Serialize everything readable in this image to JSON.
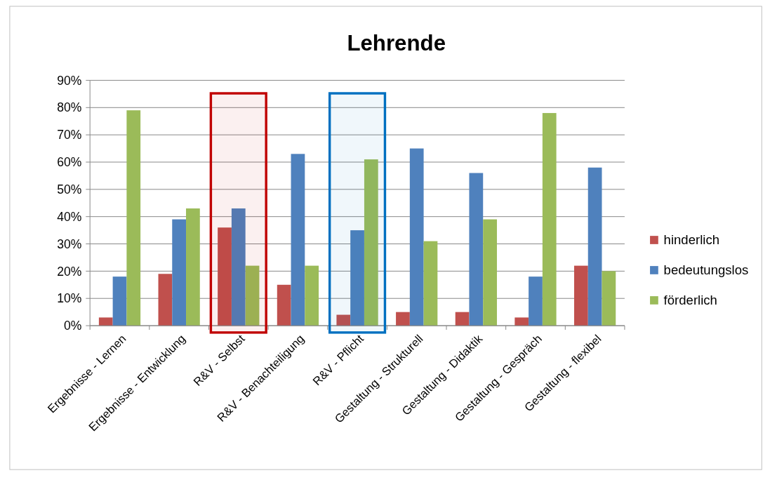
{
  "chart_data": {
    "type": "bar",
    "title": "Lehrende",
    "categories": [
      "Ergebnisse - Lernen",
      "Ergebnisse - Entwicklung",
      "R&V - Selbst",
      "R&V - Benachteiligung",
      "R&V - Pflicht",
      "Gestaltung - Strukturell",
      "Gestaltung - Didaktik",
      "Gestaltung - Gespräch",
      "Gestaltung - flexibel"
    ],
    "series": [
      {
        "name": "hinderlich",
        "color": "#c0504d",
        "values": [
          3,
          19,
          36,
          15,
          4,
          5,
          5,
          3,
          22
        ]
      },
      {
        "name": "bedeutungslos",
        "color": "#4f81bd",
        "values": [
          18,
          39,
          43,
          63,
          35,
          65,
          56,
          18,
          58
        ]
      },
      {
        "name": "förderlich",
        "color": "#9bbb59",
        "values": [
          79,
          43,
          22,
          22,
          61,
          31,
          39,
          78,
          20
        ]
      }
    ],
    "ylim": [
      0,
      90
    ],
    "yticks": [
      {
        "value": 0,
        "label": "0%"
      },
      {
        "value": 10,
        "label": "10%"
      },
      {
        "value": 20,
        "label": "20%"
      },
      {
        "value": 30,
        "label": "30%"
      },
      {
        "value": 40,
        "label": "40%"
      },
      {
        "value": 50,
        "label": "50%"
      },
      {
        "value": 60,
        "label": "60%"
      },
      {
        "value": 70,
        "label": "70%"
      },
      {
        "value": 80,
        "label": "80%"
      },
      {
        "value": 90,
        "label": "90%"
      }
    ],
    "bands": [
      {
        "axis": "x",
        "from": "R&V - Selbst",
        "to": "R&V - Selbst",
        "color": "#c00000"
      },
      {
        "axis": "x",
        "from": "R&V - Pflicht",
        "to": "R&V - Pflicht",
        "color": "#0070c0"
      }
    ],
    "grid": "y",
    "legend": "right"
  }
}
